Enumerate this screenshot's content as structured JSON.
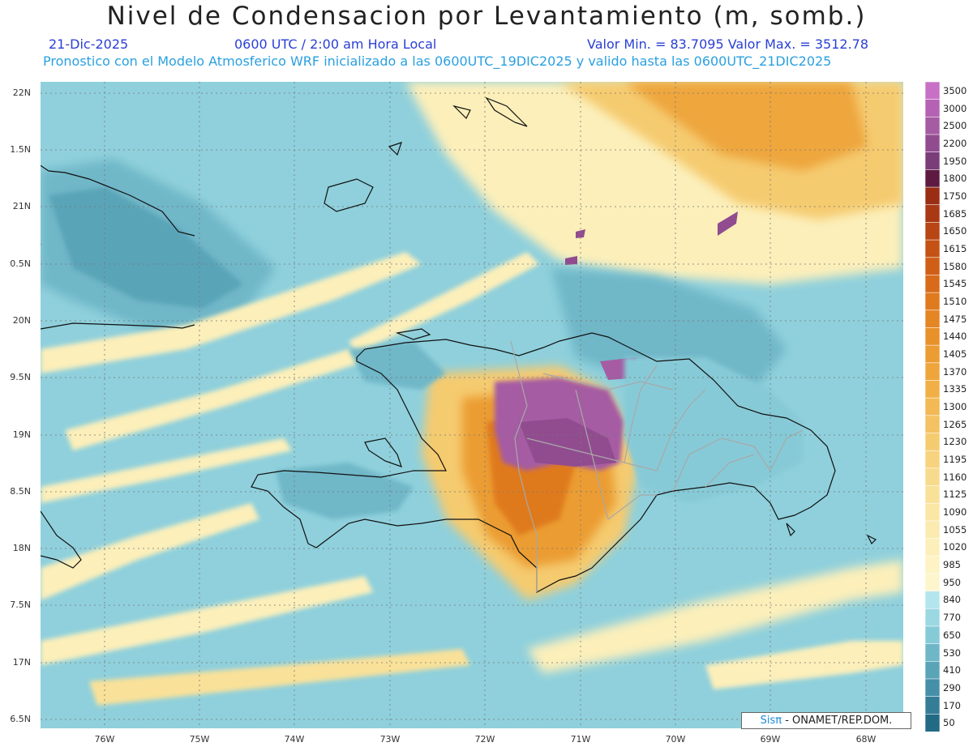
{
  "header": {
    "title": "Nivel de Condensacion por Levantamiento (m, somb.)",
    "date": "21-Dic-2025",
    "time": "0600 UTC / 2:00 am Hora Local",
    "minmax": "Valor Min. = 83.7095   Valor Max. = 3512.78",
    "forecast": "Pronostico con el Modelo Atmosferico WRF inicializado a las 0600UTC_19DIC2025 y valido hasta las  0600UTC_21DIC2025"
  },
  "axes": {
    "lat_labels": [
      "22N",
      "1.5N",
      "21N",
      "0.5N",
      "20N",
      "9.5N",
      "19N",
      "8.5N",
      "18N",
      "7.5N",
      "17N",
      "6.5N"
    ],
    "lon_labels": [
      "76W",
      "75W",
      "74W",
      "73W",
      "72W",
      "71W",
      "70W",
      "69W",
      "68W"
    ]
  },
  "legend": {
    "labels": [
      "3500",
      "3000",
      "2500",
      "2200",
      "1950",
      "1800",
      "1750",
      "1685",
      "1650",
      "1615",
      "1580",
      "1545",
      "1510",
      "1475",
      "1440",
      "1405",
      "1370",
      "1335",
      "1300",
      "1265",
      "1230",
      "1195",
      "1160",
      "1125",
      "1090",
      "1055",
      "1020",
      "985",
      "950",
      "840",
      "770",
      "650",
      "530",
      "410",
      "290",
      "170",
      "50"
    ],
    "colors": [
      "#c870c6",
      "#b662b4",
      "#a55ca3",
      "#914c90",
      "#7a3d7a",
      "#5e1a40",
      "#9a2d14",
      "#a93815",
      "#b84514",
      "#c45214",
      "#cf5f17",
      "#d86b1b",
      "#df7a1e",
      "#e48624",
      "#e8912b",
      "#eb9c33",
      "#eea63c",
      "#f0b047",
      "#f2b954",
      "#f4c262",
      "#f5cb70",
      "#f7d37e",
      "#f8da8c",
      "#f9e199",
      "#fae6a5",
      "#fbebb0",
      "#fcefba",
      "#fdf3c4",
      "#fdf6cc",
      "#b3e6ec",
      "#9cd8e2",
      "#87cad7",
      "#6fb7c8",
      "#5aa4b8",
      "#468fa8",
      "#357d97",
      "#236a85"
    ]
  },
  "credit": {
    "brand": "Sisπ",
    "rest": " - ONAMET/REP.DOM."
  }
}
